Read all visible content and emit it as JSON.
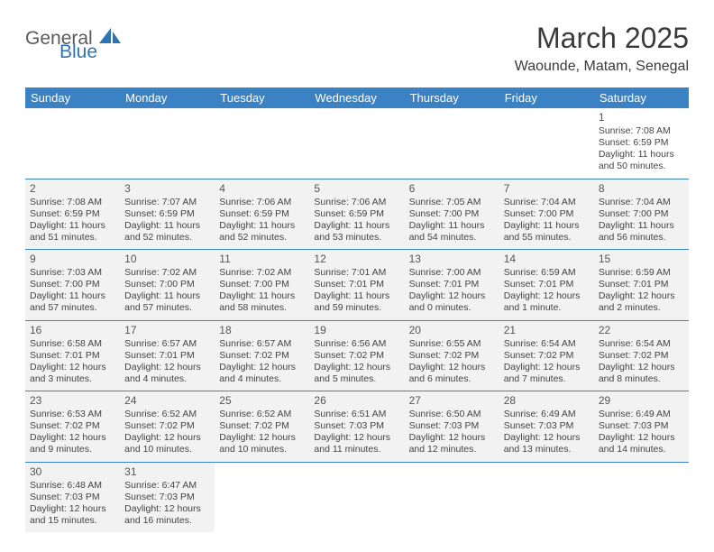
{
  "logo": {
    "part1": "General",
    "part2": "Blue",
    "shape_color": "#2e74b5"
  },
  "title": "March 2025",
  "location": "Waounde, Matam, Senegal",
  "colors": {
    "header_bg": "#3b82c4",
    "header_text": "#ffffff",
    "cell_bg": "#f2f2f2",
    "border": "#3b82c4",
    "text": "#444444"
  },
  "weekdays": [
    "Sunday",
    "Monday",
    "Tuesday",
    "Wednesday",
    "Thursday",
    "Friday",
    "Saturday"
  ],
  "weeks": [
    [
      null,
      null,
      null,
      null,
      null,
      null,
      {
        "n": "1",
        "sunrise": "Sunrise: 7:08 AM",
        "sunset": "Sunset: 6:59 PM",
        "daylight": "Daylight: 11 hours and 50 minutes."
      }
    ],
    [
      {
        "n": "2",
        "sunrise": "Sunrise: 7:08 AM",
        "sunset": "Sunset: 6:59 PM",
        "daylight": "Daylight: 11 hours and 51 minutes."
      },
      {
        "n": "3",
        "sunrise": "Sunrise: 7:07 AM",
        "sunset": "Sunset: 6:59 PM",
        "daylight": "Daylight: 11 hours and 52 minutes."
      },
      {
        "n": "4",
        "sunrise": "Sunrise: 7:06 AM",
        "sunset": "Sunset: 6:59 PM",
        "daylight": "Daylight: 11 hours and 52 minutes."
      },
      {
        "n": "5",
        "sunrise": "Sunrise: 7:06 AM",
        "sunset": "Sunset: 6:59 PM",
        "daylight": "Daylight: 11 hours and 53 minutes."
      },
      {
        "n": "6",
        "sunrise": "Sunrise: 7:05 AM",
        "sunset": "Sunset: 7:00 PM",
        "daylight": "Daylight: 11 hours and 54 minutes."
      },
      {
        "n": "7",
        "sunrise": "Sunrise: 7:04 AM",
        "sunset": "Sunset: 7:00 PM",
        "daylight": "Daylight: 11 hours and 55 minutes."
      },
      {
        "n": "8",
        "sunrise": "Sunrise: 7:04 AM",
        "sunset": "Sunset: 7:00 PM",
        "daylight": "Daylight: 11 hours and 56 minutes."
      }
    ],
    [
      {
        "n": "9",
        "sunrise": "Sunrise: 7:03 AM",
        "sunset": "Sunset: 7:00 PM",
        "daylight": "Daylight: 11 hours and 57 minutes."
      },
      {
        "n": "10",
        "sunrise": "Sunrise: 7:02 AM",
        "sunset": "Sunset: 7:00 PM",
        "daylight": "Daylight: 11 hours and 57 minutes."
      },
      {
        "n": "11",
        "sunrise": "Sunrise: 7:02 AM",
        "sunset": "Sunset: 7:00 PM",
        "daylight": "Daylight: 11 hours and 58 minutes."
      },
      {
        "n": "12",
        "sunrise": "Sunrise: 7:01 AM",
        "sunset": "Sunset: 7:01 PM",
        "daylight": "Daylight: 11 hours and 59 minutes."
      },
      {
        "n": "13",
        "sunrise": "Sunrise: 7:00 AM",
        "sunset": "Sunset: 7:01 PM",
        "daylight": "Daylight: 12 hours and 0 minutes."
      },
      {
        "n": "14",
        "sunrise": "Sunrise: 6:59 AM",
        "sunset": "Sunset: 7:01 PM",
        "daylight": "Daylight: 12 hours and 1 minute."
      },
      {
        "n": "15",
        "sunrise": "Sunrise: 6:59 AM",
        "sunset": "Sunset: 7:01 PM",
        "daylight": "Daylight: 12 hours and 2 minutes."
      }
    ],
    [
      {
        "n": "16",
        "sunrise": "Sunrise: 6:58 AM",
        "sunset": "Sunset: 7:01 PM",
        "daylight": "Daylight: 12 hours and 3 minutes."
      },
      {
        "n": "17",
        "sunrise": "Sunrise: 6:57 AM",
        "sunset": "Sunset: 7:01 PM",
        "daylight": "Daylight: 12 hours and 4 minutes."
      },
      {
        "n": "18",
        "sunrise": "Sunrise: 6:57 AM",
        "sunset": "Sunset: 7:02 PM",
        "daylight": "Daylight: 12 hours and 4 minutes."
      },
      {
        "n": "19",
        "sunrise": "Sunrise: 6:56 AM",
        "sunset": "Sunset: 7:02 PM",
        "daylight": "Daylight: 12 hours and 5 minutes."
      },
      {
        "n": "20",
        "sunrise": "Sunrise: 6:55 AM",
        "sunset": "Sunset: 7:02 PM",
        "daylight": "Daylight: 12 hours and 6 minutes."
      },
      {
        "n": "21",
        "sunrise": "Sunrise: 6:54 AM",
        "sunset": "Sunset: 7:02 PM",
        "daylight": "Daylight: 12 hours and 7 minutes."
      },
      {
        "n": "22",
        "sunrise": "Sunrise: 6:54 AM",
        "sunset": "Sunset: 7:02 PM",
        "daylight": "Daylight: 12 hours and 8 minutes."
      }
    ],
    [
      {
        "n": "23",
        "sunrise": "Sunrise: 6:53 AM",
        "sunset": "Sunset: 7:02 PM",
        "daylight": "Daylight: 12 hours and 9 minutes."
      },
      {
        "n": "24",
        "sunrise": "Sunrise: 6:52 AM",
        "sunset": "Sunset: 7:02 PM",
        "daylight": "Daylight: 12 hours and 10 minutes."
      },
      {
        "n": "25",
        "sunrise": "Sunrise: 6:52 AM",
        "sunset": "Sunset: 7:02 PM",
        "daylight": "Daylight: 12 hours and 10 minutes."
      },
      {
        "n": "26",
        "sunrise": "Sunrise: 6:51 AM",
        "sunset": "Sunset: 7:03 PM",
        "daylight": "Daylight: 12 hours and 11 minutes."
      },
      {
        "n": "27",
        "sunrise": "Sunrise: 6:50 AM",
        "sunset": "Sunset: 7:03 PM",
        "daylight": "Daylight: 12 hours and 12 minutes."
      },
      {
        "n": "28",
        "sunrise": "Sunrise: 6:49 AM",
        "sunset": "Sunset: 7:03 PM",
        "daylight": "Daylight: 12 hours and 13 minutes."
      },
      {
        "n": "29",
        "sunrise": "Sunrise: 6:49 AM",
        "sunset": "Sunset: 7:03 PM",
        "daylight": "Daylight: 12 hours and 14 minutes."
      }
    ],
    [
      {
        "n": "30",
        "sunrise": "Sunrise: 6:48 AM",
        "sunset": "Sunset: 7:03 PM",
        "daylight": "Daylight: 12 hours and 15 minutes."
      },
      {
        "n": "31",
        "sunrise": "Sunrise: 6:47 AM",
        "sunset": "Sunset: 7:03 PM",
        "daylight": "Daylight: 12 hours and 16 minutes."
      },
      null,
      null,
      null,
      null,
      null
    ]
  ]
}
